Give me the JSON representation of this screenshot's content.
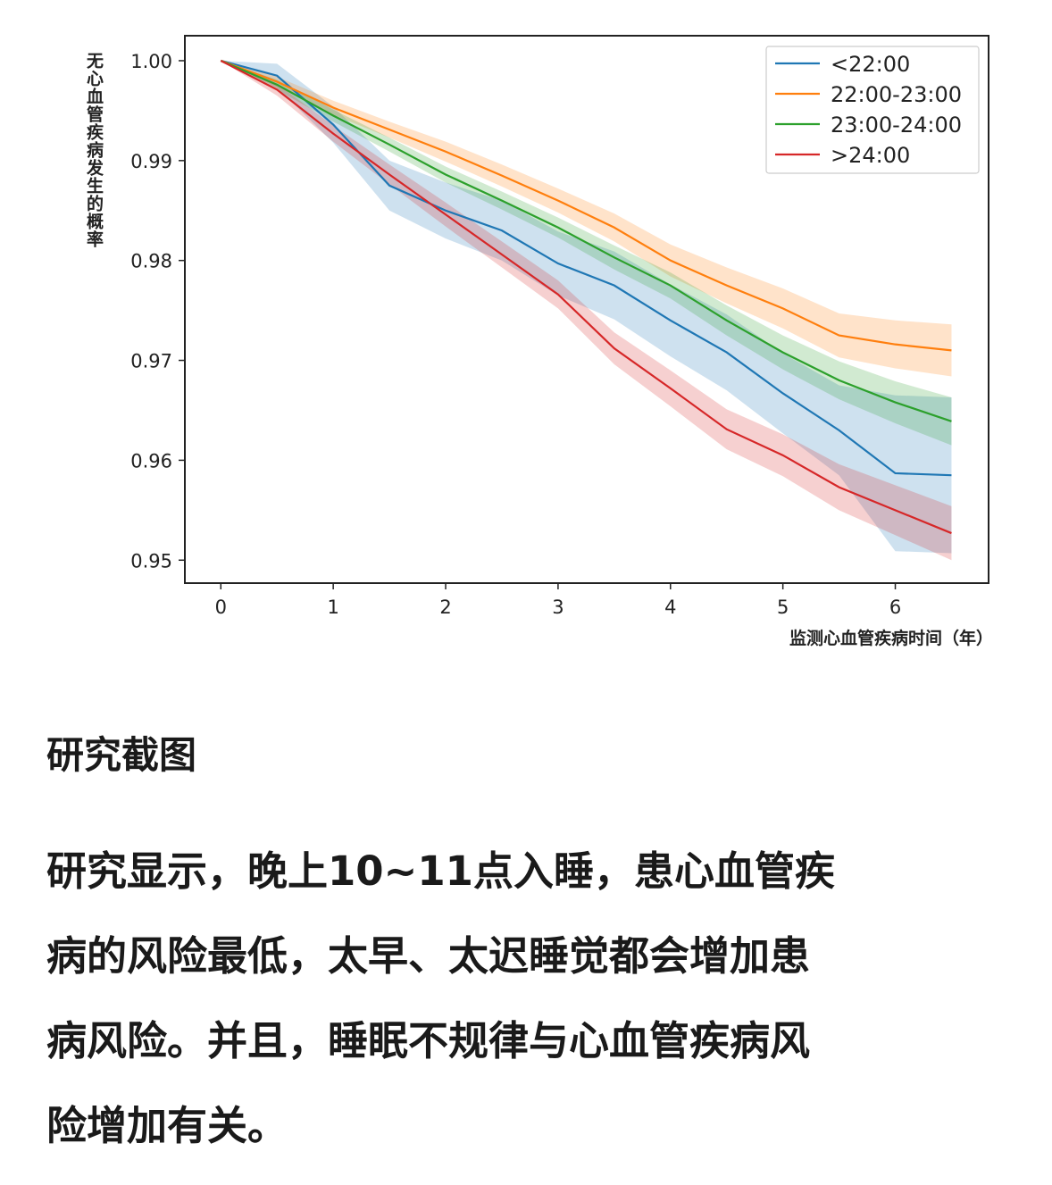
{
  "chart_data": {
    "type": "line",
    "title": "",
    "xlabel": "监测心血管疾病时间（年）",
    "ylabel": "无心血管疾病发生的概率",
    "xlim": [
      -0.32,
      6.83
    ],
    "ylim": [
      0.9477,
      1.0025
    ],
    "xticks": [
      0,
      1,
      2,
      3,
      4,
      5,
      6
    ],
    "yticks": [
      "1.00",
      "0.99",
      "0.98",
      "0.97",
      "0.96",
      "0.95"
    ],
    "grid": false,
    "legend_position": "top-right",
    "x": [
      0,
      0.5,
      1,
      1.5,
      2,
      2.5,
      3,
      3.5,
      4,
      4.5,
      5,
      5.5,
      6,
      6.5
    ],
    "series": [
      {
        "name": "<22:00",
        "color": "#1f77b4",
        "values": [
          1.0,
          0.9985,
          0.9936,
          0.9875,
          0.985,
          0.983,
          0.9797,
          0.9775,
          0.974,
          0.9708,
          0.9667,
          0.963,
          0.9587,
          0.9585
        ],
        "ci_halfwidth": [
          0,
          0.0012,
          0.0018,
          0.0025,
          0.0028,
          0.003,
          0.0032,
          0.0034,
          0.0036,
          0.0038,
          0.004,
          0.0045,
          0.0078,
          0.0078
        ]
      },
      {
        "name": "22:00-23:00",
        "color": "#ff7f0e",
        "values": [
          1.0,
          0.9979,
          0.9953,
          0.9931,
          0.9909,
          0.9885,
          0.986,
          0.9833,
          0.98,
          0.9775,
          0.9752,
          0.9725,
          0.9716,
          0.971
        ],
        "ci_halfwidth": [
          0,
          0.0005,
          0.0007,
          0.0008,
          0.001,
          0.0011,
          0.0012,
          0.0014,
          0.0016,
          0.0018,
          0.002,
          0.0022,
          0.0024,
          0.0026
        ]
      },
      {
        "name": "23:00-24:00",
        "color": "#2ca02c",
        "values": [
          1.0,
          0.9976,
          0.9945,
          0.9916,
          0.9886,
          0.986,
          0.9833,
          0.9803,
          0.9775,
          0.974,
          0.9708,
          0.968,
          0.9658,
          0.9639
        ],
        "ci_halfwidth": [
          0,
          0.0005,
          0.0006,
          0.0007,
          0.0008,
          0.0009,
          0.001,
          0.0012,
          0.0013,
          0.0015,
          0.0017,
          0.0019,
          0.0021,
          0.0024
        ]
      },
      {
        "name": ">24:00",
        "color": "#d62728",
        "values": [
          1.0,
          0.9971,
          0.9927,
          0.9886,
          0.9846,
          0.9806,
          0.9766,
          0.9712,
          0.9672,
          0.9631,
          0.9605,
          0.9573,
          0.955,
          0.9527
        ],
        "ci_halfwidth": [
          0,
          0.0006,
          0.0008,
          0.001,
          0.0012,
          0.0013,
          0.0014,
          0.0016,
          0.0018,
          0.002,
          0.0021,
          0.0023,
          0.0025,
          0.0027
        ]
      }
    ]
  },
  "article": {
    "caption": "研究截图",
    "paragraph_lines": [
      "研究显示，晚上10~11点入睡，患心血管疾",
      "病的风险最低，太早、太迟睡觉都会增加患",
      "病风险。并且，睡眠不规律与心血管疾病风",
      "险增加有关。"
    ]
  }
}
